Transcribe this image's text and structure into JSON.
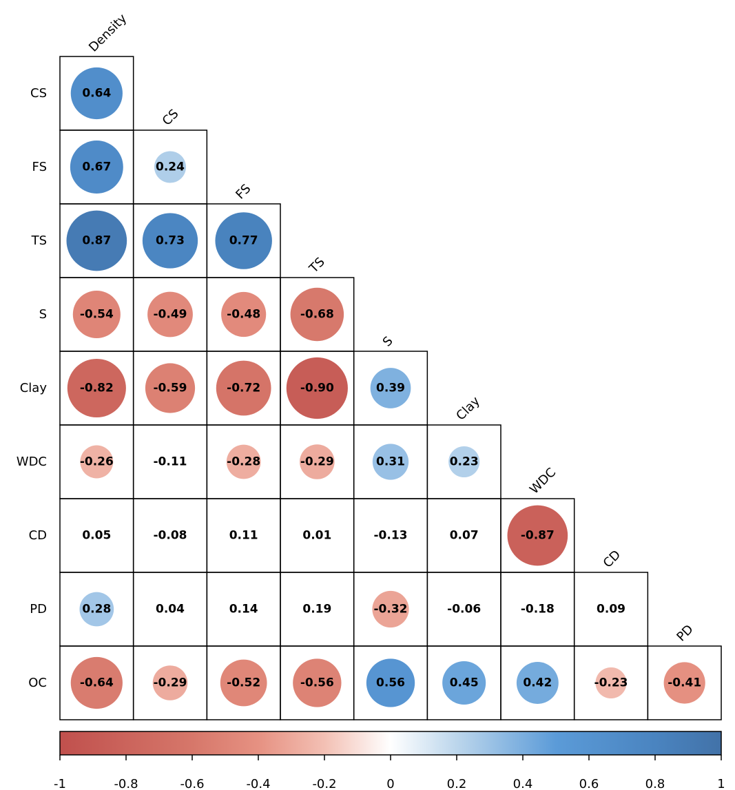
{
  "chart_data": {
    "type": "heatmap",
    "variables": [
      "Density",
      "CS",
      "FS",
      "TS",
      "S",
      "Clay",
      "WDC",
      "CD",
      "PD",
      "OC"
    ],
    "matrix_lower": [
      [],
      [
        0.64
      ],
      [
        0.67,
        0.24
      ],
      [
        0.87,
        0.73,
        0.77
      ],
      [
        -0.54,
        -0.49,
        -0.48,
        -0.68
      ],
      [
        -0.82,
        -0.59,
        -0.72,
        -0.9,
        0.39
      ],
      [
        -0.26,
        -0.11,
        -0.28,
        -0.29,
        0.31,
        0.23
      ],
      [
        0.05,
        -0.08,
        0.11,
        0.01,
        -0.13,
        0.07,
        -0.87
      ],
      [
        0.28,
        0.04,
        0.14,
        0.19,
        -0.32,
        -0.06,
        -0.18,
        0.09
      ],
      [
        -0.64,
        -0.29,
        -0.52,
        -0.56,
        0.56,
        0.45,
        0.42,
        -0.23,
        -0.41
      ]
    ],
    "value_labels": [
      [],
      [
        "0.64"
      ],
      [
        "0.67",
        "0.24"
      ],
      [
        "0.87",
        "0.73",
        "0.77"
      ],
      [
        "-0.54",
        "-0.49",
        "-0.48",
        "-0.68"
      ],
      [
        "-0.82",
        "-0.59",
        "-0.72",
        "-0.90",
        "0.39"
      ],
      [
        "-0.26",
        "-0.11",
        "-0.28",
        "-0.29",
        "0.31",
        "0.23"
      ],
      [
        "0.05",
        "-0.08",
        "0.11",
        "0.01",
        "-0.13",
        "0.07",
        "-0.87"
      ],
      [
        "0.28",
        "0.04",
        "0.14",
        "0.19",
        "-0.32",
        "-0.06",
        "-0.18",
        "0.09"
      ],
      [
        "-0.64",
        "-0.29",
        "-0.52",
        "-0.56",
        "0.56",
        "0.45",
        "0.42",
        "-0.23",
        "-0.41"
      ]
    ],
    "significance_threshold": 0.2,
    "colorbar": {
      "range": [
        -1,
        1
      ],
      "ticks": [
        "-1",
        "-0.8",
        "-0.6",
        "-0.4",
        "-0.2",
        "0",
        "0.2",
        "0.4",
        "0.6",
        "0.8",
        "1"
      ],
      "colors": {
        "negative": "#c0504d",
        "mid": "#ffffff",
        "positive": "#4272a8"
      }
    }
  }
}
